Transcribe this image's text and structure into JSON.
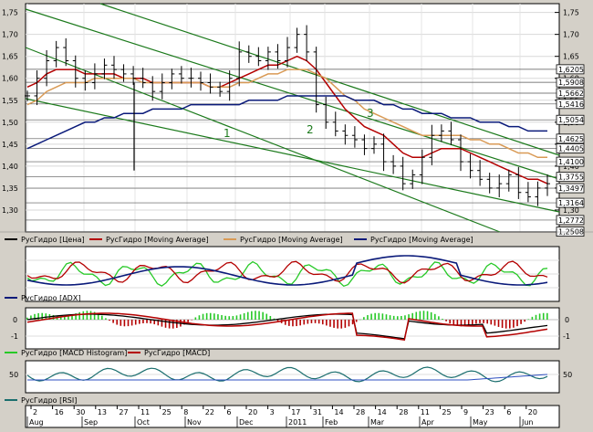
{
  "colors": {
    "background": "#d4d0c8",
    "panel": "#ffffff",
    "price": "#000000",
    "ma_red": "#b40000",
    "ma_tan": "#d99a55",
    "ma_navy": "#0a1a7a",
    "channel": "#1c7a1c",
    "adx": "#0a1a7a",
    "di_plus": "#27c927",
    "di_minus": "#b40000",
    "macd_hist_pos": "#27c927",
    "macd_hist_neg": "#b40000",
    "macd_signal": "#000000",
    "macd_line": "#b40000",
    "rsi": "#1a6e6e"
  },
  "panels": {
    "price": {
      "y_ticks": [
        "1,75",
        "1,70",
        "1,65",
        "1,60",
        "1,55",
        "1,50",
        "1,45",
        "1,40",
        "1,35",
        "1,30"
      ],
      "level_labels": [
        "1,6205",
        "1,5908",
        "1,5662",
        "1,5416",
        "1,5054",
        "1,4625",
        "1,4405",
        "1,4100",
        "1,3755",
        "1,3497",
        "1,3164",
        "1,2772",
        "1,2508"
      ],
      "wave_labels": [
        "1",
        "2",
        "3"
      ],
      "legend": [
        "РусГидро [Цена]",
        "РусГидро [Moving Average]",
        "РусГидро [Moving Average]",
        "РусГидро [Moving Average]"
      ]
    },
    "adx": {
      "legend": "РусГидро [ADX]"
    },
    "macd": {
      "y_ticks": [
        "0",
        "-1"
      ],
      "right_ticks": [
        "0",
        "-1"
      ],
      "legend": [
        "РусГидро [MACD Histogram]",
        "РусГидро [MACD]"
      ]
    },
    "rsi": {
      "y_ticks": [
        "50"
      ],
      "right_ticks": [
        "50"
      ],
      "legend": "РусГидро [RSI]"
    }
  },
  "x_axis": {
    "days": [
      "2",
      "16",
      "30",
      "13",
      "27",
      "11",
      "25",
      "8",
      "22",
      "6",
      "20",
      "3",
      "17",
      "31",
      "14",
      "28",
      "14",
      "28",
      "11",
      "25",
      "9",
      "23",
      "6",
      "20"
    ],
    "months": [
      "Aug",
      "Sep",
      "Oct",
      "Nov",
      "Dec",
      "2011",
      "Feb",
      "Mar",
      "Apr",
      "May",
      "Jun"
    ]
  },
  "chart_data": {
    "type": "line",
    "title": "",
    "ylabel": "",
    "ylim": [
      1.25,
      1.77
    ],
    "series": [
      {
        "name": "РусГидро [Цена]",
        "values": [
          1.56,
          1.6,
          1.64,
          1.67,
          1.64,
          1.6,
          1.59,
          1.61,
          1.63,
          1.62,
          1.61,
          1.6,
          1.59,
          1.57,
          1.59,
          1.61,
          1.6,
          1.6,
          1.59,
          1.58,
          1.57,
          1.6,
          1.66,
          1.65,
          1.64,
          1.66,
          1.64,
          1.67,
          1.7,
          1.66,
          1.54,
          1.5,
          1.48,
          1.47,
          1.46,
          1.44,
          1.45,
          1.41,
          1.4,
          1.36,
          1.38,
          1.42,
          1.47,
          1.48,
          1.46,
          1.41,
          1.39,
          1.37,
          1.35,
          1.36,
          1.38,
          1.34,
          1.33,
          1.35,
          1.36
        ]
      },
      {
        "name": "РусГидро [Moving Average]",
        "values": [
          1.58,
          1.59,
          1.61,
          1.62,
          1.62,
          1.62,
          1.61,
          1.61,
          1.61,
          1.61,
          1.6,
          1.6,
          1.6,
          1.59,
          1.59,
          1.59,
          1.59,
          1.59,
          1.59,
          1.58,
          1.58,
          1.59,
          1.6,
          1.61,
          1.62,
          1.63,
          1.63,
          1.64,
          1.65,
          1.64,
          1.62,
          1.59,
          1.56,
          1.53,
          1.51,
          1.49,
          1.48,
          1.47,
          1.45,
          1.43,
          1.42,
          1.42,
          1.43,
          1.44,
          1.44,
          1.44,
          1.43,
          1.42,
          1.41,
          1.4,
          1.39,
          1.38,
          1.37,
          1.37,
          1.36
        ]
      },
      {
        "name": "РусГидро [Moving Average]",
        "values": [
          1.54,
          1.55,
          1.57,
          1.58,
          1.59,
          1.59,
          1.59,
          1.6,
          1.6,
          1.6,
          1.6,
          1.6,
          1.59,
          1.59,
          1.59,
          1.59,
          1.59,
          1.59,
          1.59,
          1.58,
          1.58,
          1.58,
          1.59,
          1.59,
          1.6,
          1.61,
          1.61,
          1.62,
          1.62,
          1.62,
          1.61,
          1.6,
          1.58,
          1.56,
          1.55,
          1.53,
          1.52,
          1.51,
          1.5,
          1.49,
          1.48,
          1.47,
          1.47,
          1.47,
          1.47,
          1.47,
          1.46,
          1.46,
          1.45,
          1.45,
          1.44,
          1.43,
          1.43,
          1.42,
          1.42
        ]
      },
      {
        "name": "РусГидро [Moving Average]",
        "values": [
          1.44,
          1.45,
          1.46,
          1.47,
          1.48,
          1.49,
          1.5,
          1.5,
          1.51,
          1.51,
          1.52,
          1.52,
          1.52,
          1.53,
          1.53,
          1.53,
          1.53,
          1.54,
          1.54,
          1.54,
          1.54,
          1.54,
          1.54,
          1.55,
          1.55,
          1.55,
          1.55,
          1.56,
          1.56,
          1.56,
          1.56,
          1.56,
          1.56,
          1.56,
          1.55,
          1.55,
          1.55,
          1.54,
          1.54,
          1.53,
          1.53,
          1.52,
          1.52,
          1.52,
          1.51,
          1.51,
          1.51,
          1.5,
          1.5,
          1.5,
          1.49,
          1.49,
          1.48,
          1.48,
          1.48
        ]
      }
    ],
    "grid": true,
    "legend": "bottom"
  }
}
